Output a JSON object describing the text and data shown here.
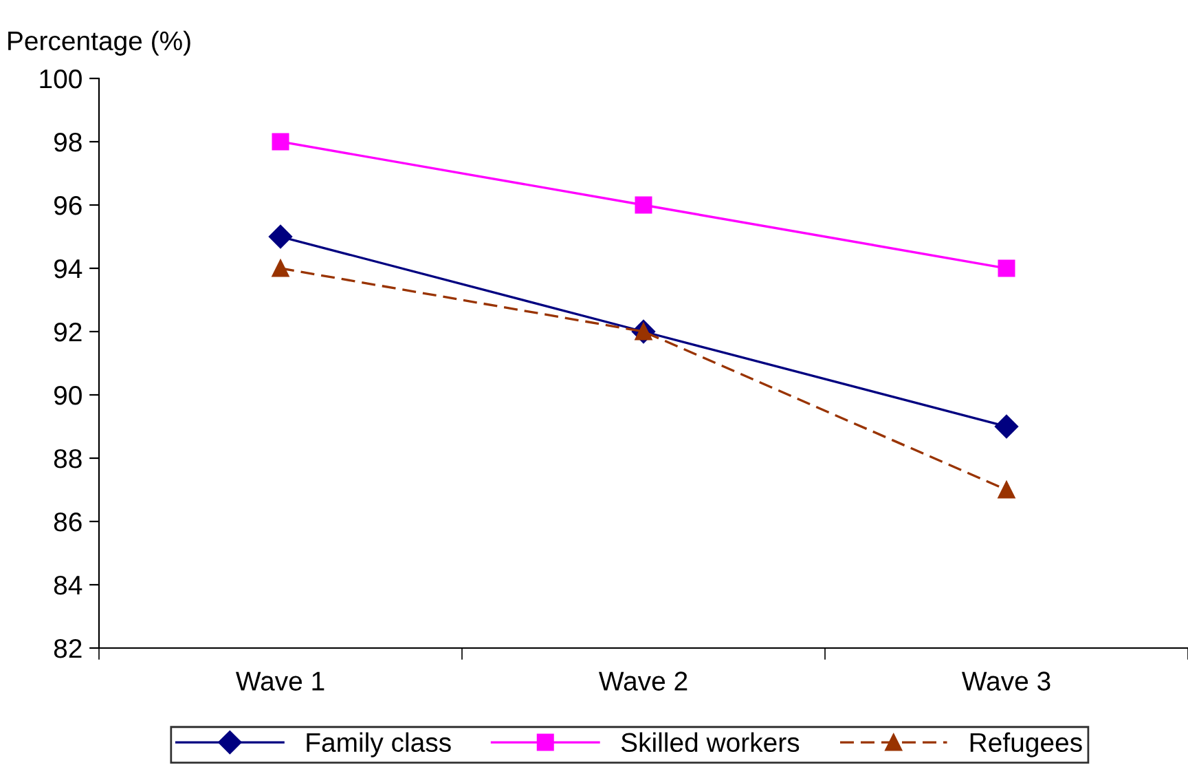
{
  "chart_data": {
    "type": "line",
    "ylabel": "Percentage (%)",
    "categories": [
      "Wave 1",
      "Wave 2",
      "Wave 3"
    ],
    "series": [
      {
        "name": "Family class",
        "color": "#000080",
        "values": [
          95,
          92,
          89
        ],
        "marker": "diamond",
        "line_style": "solid"
      },
      {
        "name": "Skilled workers",
        "color": "#ff00ff",
        "values": [
          98,
          96,
          94
        ],
        "marker": "square",
        "line_style": "solid"
      },
      {
        "name": "Refugees",
        "color": "#993300",
        "values": [
          94,
          92,
          87
        ],
        "marker": "triangle",
        "line_style": "dashed"
      }
    ],
    "ylim": [
      82,
      100
    ],
    "yticks": [
      82,
      84,
      86,
      88,
      90,
      92,
      94,
      96,
      98,
      100
    ],
    "grid": false,
    "legend": "bottom"
  }
}
